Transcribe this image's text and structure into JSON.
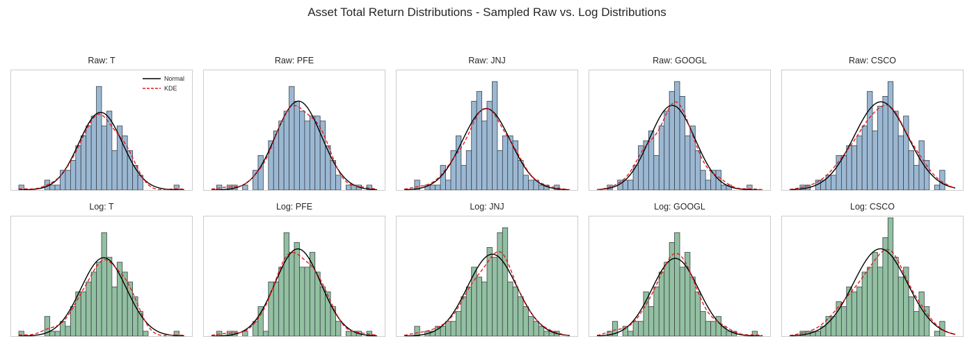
{
  "figure": {
    "title": "Asset Total Return Distributions - Sampled Raw vs. Log Distributions"
  },
  "colors": {
    "raw_bar": "#9bb8d3",
    "log_bar": "#92c0a1",
    "bar_edge": "#3a4049",
    "normal_line": "#000000",
    "kde_line": "#e41a1c",
    "frame": "#cccccc"
  },
  "legend": {
    "entries": [
      "Normal",
      "KDE"
    ],
    "placement": "upper right (first panel)"
  },
  "chart_data": [
    {
      "type": "histogram",
      "title": "Raw: T",
      "legend": true,
      "xlabel": "",
      "ylabel": "",
      "series": [
        {
          "name": "Normal",
          "kind": "line",
          "style": "solid"
        },
        {
          "name": "KDE",
          "kind": "line",
          "style": "dashed"
        }
      ],
      "ylim": [
        0,
        24
      ],
      "bin_counts": [
        1,
        0,
        0,
        0,
        0,
        2,
        1,
        1,
        4,
        4,
        6,
        9,
        11,
        13,
        15,
        21,
        13,
        16,
        8,
        13,
        11,
        8,
        5,
        3,
        0,
        0,
        0,
        0,
        0,
        0,
        1,
        0
      ]
    },
    {
      "type": "histogram",
      "title": "Raw: PFE",
      "legend": false,
      "xlabel": "",
      "ylabel": "",
      "ylim": [
        0,
        24
      ],
      "bin_counts": [
        0,
        1,
        0,
        1,
        1,
        0,
        1,
        0,
        4,
        7,
        0,
        10,
        12,
        14,
        16,
        21,
        18,
        16,
        14,
        15,
        15,
        14,
        9,
        6,
        3,
        0,
        1,
        1,
        1,
        0,
        1,
        0
      ]
    },
    {
      "type": "histogram",
      "title": "Raw: JNJ",
      "legend": false,
      "xlabel": "",
      "ylabel": "",
      "ylim": [
        0,
        24
      ],
      "bin_counts": [
        0,
        0,
        2,
        0,
        1,
        1,
        1,
        5,
        2,
        8,
        11,
        5,
        8,
        18,
        20,
        14,
        18,
        22,
        8,
        11,
        11,
        10,
        6,
        3,
        2,
        2,
        1,
        1,
        0,
        1,
        0,
        0
      ]
    },
    {
      "type": "histogram",
      "title": "Raw: GOOGL",
      "legend": false,
      "xlabel": "",
      "ylabel": "",
      "ylim": [
        0,
        24
      ],
      "bin_counts": [
        0,
        0,
        1,
        0,
        2,
        2,
        2,
        5,
        9,
        10,
        12,
        7,
        13,
        16,
        20,
        22,
        19,
        11,
        13,
        8,
        4,
        2,
        4,
        4,
        1,
        1,
        0,
        0,
        0,
        1,
        0,
        0
      ]
    },
    {
      "type": "histogram",
      "title": "Raw: CSCO",
      "legend": false,
      "xlabel": "",
      "ylabel": "",
      "ylim": [
        0,
        24
      ],
      "bin_counts": [
        0,
        0,
        1,
        1,
        0,
        2,
        2,
        3,
        3,
        7,
        7,
        9,
        9,
        11,
        13,
        20,
        12,
        17,
        19,
        22,
        16,
        11,
        15,
        8,
        5,
        10,
        6,
        0,
        1,
        4,
        0,
        0
      ]
    },
    {
      "type": "histogram",
      "title": "Log: T",
      "legend": false,
      "xlabel": "",
      "ylabel": "",
      "ylim": [
        0,
        24
      ],
      "bin_counts": [
        1,
        0,
        0,
        0,
        0,
        4,
        1,
        1,
        3,
        2,
        6,
        9,
        9,
        11,
        13,
        15,
        21,
        16,
        10,
        15,
        13,
        11,
        8,
        5,
        1,
        0,
        0,
        0,
        0,
        0,
        1,
        0
      ]
    },
    {
      "type": "histogram",
      "title": "Log: PFE",
      "legend": false,
      "xlabel": "",
      "ylabel": "",
      "ylim": [
        0,
        24
      ],
      "bin_counts": [
        0,
        1,
        0,
        1,
        1,
        0,
        1,
        0,
        3,
        6,
        1,
        11,
        11,
        14,
        21,
        17,
        19,
        14,
        14,
        17,
        13,
        10,
        9,
        6,
        3,
        0,
        1,
        1,
        1,
        0,
        1,
        0
      ]
    },
    {
      "type": "histogram",
      "title": "Log: JNJ",
      "legend": false,
      "xlabel": "",
      "ylabel": "",
      "ylim": [
        0,
        24
      ],
      "bin_counts": [
        0,
        0,
        2,
        0,
        1,
        1,
        2,
        2,
        3,
        3,
        5,
        8,
        10,
        14,
        12,
        11,
        18,
        16,
        21,
        22,
        11,
        10,
        8,
        6,
        4,
        3,
        2,
        1,
        1,
        1,
        0,
        0
      ]
    },
    {
      "type": "histogram",
      "title": "Log: GOOGL",
      "legend": false,
      "xlabel": "",
      "ylabel": "",
      "ylim": [
        0,
        24
      ],
      "bin_counts": [
        0,
        0,
        1,
        3,
        0,
        2,
        1,
        3,
        3,
        9,
        6,
        10,
        13,
        15,
        19,
        21,
        14,
        17,
        12,
        9,
        5,
        3,
        3,
        4,
        2,
        1,
        1,
        0,
        0,
        0,
        1,
        0
      ]
    },
    {
      "type": "histogram",
      "title": "Log: CSCO",
      "legend": false,
      "xlabel": "",
      "ylabel": "",
      "ylim": [
        0,
        24
      ],
      "bin_counts": [
        0,
        0,
        1,
        1,
        1,
        1,
        2,
        4,
        4,
        7,
        6,
        10,
        9,
        10,
        13,
        14,
        17,
        14,
        20,
        24,
        16,
        12,
        14,
        8,
        5,
        9,
        6,
        0,
        1,
        3,
        0,
        0
      ]
    }
  ]
}
